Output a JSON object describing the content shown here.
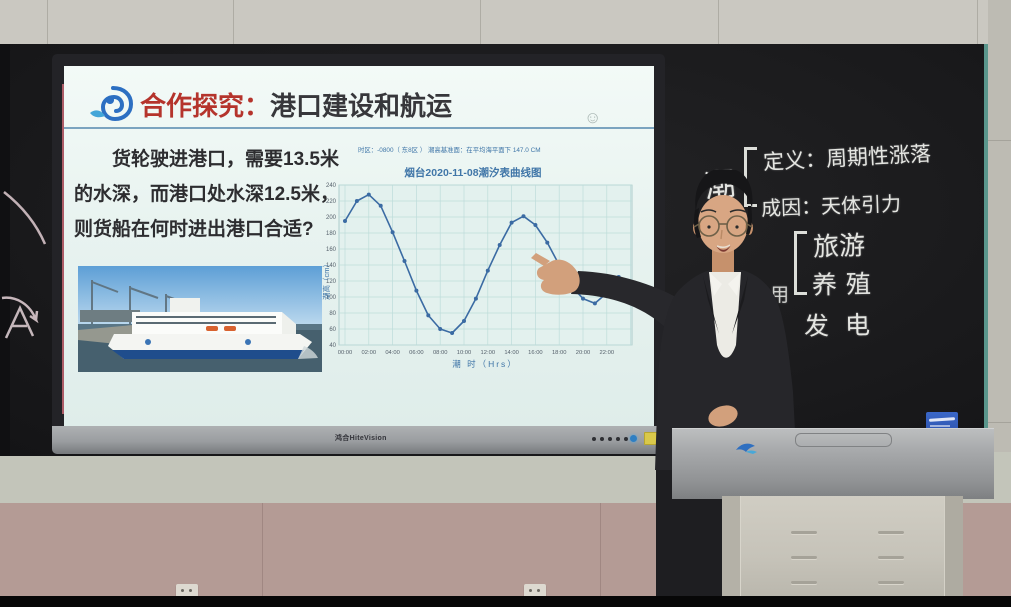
{
  "slide": {
    "title_prefix": "合作探究：",
    "title_main": "港口建设和航运",
    "question_lines": [
      "货轮驶进港口，需要13.5米",
      "的水深，而港口处水深12.5米，",
      "则货船在何时进出港口合适?"
    ],
    "smiley": "☺"
  },
  "chart_data": {
    "type": "line",
    "title": "烟台2020-11-08潮汐表曲线图",
    "meta_line": "时区：-0800（ 东8区 ） 潮高基准面：在平均海平面下 147.0 CM",
    "xlabel": "潮 时（Hrs）",
    "ylabel": "潮高（cm）",
    "x_hours": [
      0,
      1,
      2,
      3,
      4,
      5,
      6,
      7,
      8,
      9,
      10,
      11,
      12,
      13,
      14,
      15,
      16,
      17,
      18,
      19,
      20,
      21,
      22,
      23
    ],
    "values": [
      195,
      220,
      228,
      214,
      181,
      145,
      108,
      77,
      60,
      55,
      70,
      98,
      133,
      165,
      193,
      201,
      190,
      168,
      140,
      114,
      98,
      92,
      105,
      125
    ],
    "ylim": [
      40,
      240
    ],
    "ytick_step": 20,
    "xtick_labels": [
      "00:00",
      "02:00",
      "04:00",
      "06:00",
      "08:00",
      "10:00",
      "12:00",
      "14:00",
      "16:00",
      "18:00",
      "20:00",
      "22:00"
    ],
    "grid": true,
    "legend": "none",
    "line_color": "#3b6ba3",
    "grid_color": "#bedcda",
    "axis_text_color": "#4076a8",
    "plot_bg": "#e3f1ee"
  },
  "blackboard": {
    "term": "潮",
    "definition": "定义：周期性涨落",
    "cause": "成因：天体引力",
    "partial_char": "用",
    "uses": [
      "旅游",
      "养殖",
      "发电"
    ]
  },
  "display": {
    "brand": "鸿合HiteVision"
  },
  "colors": {
    "title_red": "#b5342c",
    "chalk": "#e4e5e1",
    "board_edge_teal": "#5a968c",
    "screen_bg": "#e8f3f0"
  }
}
